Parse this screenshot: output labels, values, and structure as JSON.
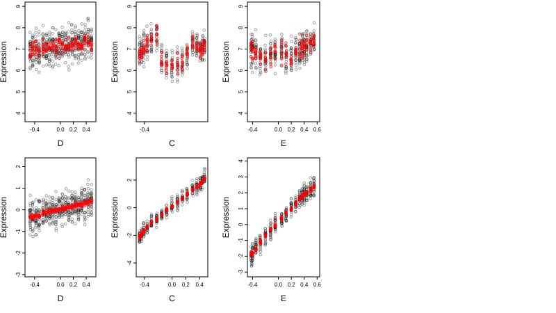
{
  "chart_data": [
    {
      "type": "scatter",
      "xlabel": "D",
      "ylabel": "Expression",
      "xlim": [
        -0.55,
        0.55
      ],
      "ylim": [
        3.6,
        9.2
      ],
      "xticks": [
        -0.4,
        0.0,
        0.2,
        0.4
      ],
      "xtick_labels": [
        "-0.4",
        "0.0",
        "0.2",
        "0.4"
      ],
      "yticks": [
        4,
        5,
        6,
        7,
        8,
        9
      ],
      "ytick_labels": [
        "4",
        "5",
        "6",
        "7",
        "8",
        "9"
      ],
      "x_groups": [
        -0.47,
        -0.43,
        -0.38,
        -0.33,
        -0.27,
        -0.22,
        -0.17,
        -0.12,
        -0.07,
        -0.02,
        0.03,
        0.08,
        0.13,
        0.18,
        0.23,
        0.28,
        0.33,
        0.38,
        0.43,
        0.48
      ],
      "observed_center": [
        6.8,
        6.9,
        7.0,
        6.9,
        7.1,
        7.0,
        7.2,
        7.1,
        7.0,
        7.2,
        7.3,
        7.2,
        7.1,
        7.4,
        7.3,
        7.2,
        7.4,
        7.3,
        7.5,
        7.3
      ],
      "observed_spread": 0.85,
      "observed_points_per_group": 24,
      "fitted_center": [
        6.8,
        6.9,
        7.0,
        6.9,
        7.0,
        7.0,
        7.1,
        7.1,
        7.0,
        7.2,
        7.2,
        7.2,
        7.1,
        7.3,
        7.3,
        7.2,
        7.3,
        7.3,
        7.4,
        7.3
      ],
      "fitted_spread": 0.35,
      "fitted_points_per_group": 8,
      "grid": false
    },
    {
      "type": "scatter",
      "xlabel": "C",
      "ylabel": "Expression",
      "xlim": [
        -0.52,
        0.52
      ],
      "ylim": [
        3.6,
        9.2
      ],
      "xticks": [
        -0.4
      ],
      "xtick_labels": [
        "-0.4"
      ],
      "yticks": [
        4,
        5,
        6,
        7,
        8,
        9
      ],
      "ytick_labels": [
        "4",
        "5",
        "6",
        "7",
        "8",
        "9"
      ],
      "x_groups": [
        -0.47,
        -0.44,
        -0.41,
        -0.36,
        -0.3,
        -0.22,
        -0.15,
        -0.08,
        0.0,
        0.08,
        0.15,
        0.22,
        0.3,
        0.36,
        0.41,
        0.44,
        0.47
      ],
      "observed_center": [
        6.8,
        6.9,
        7.0,
        7.2,
        7.4,
        7.6,
        6.6,
        6.3,
        6.2,
        6.3,
        6.4,
        6.8,
        7.3,
        7.1,
        7.0,
        7.1,
        7.2
      ],
      "observed_spread": 0.7,
      "observed_points_per_group": 20,
      "fitted_center": [
        6.7,
        6.9,
        7.1,
        7.2,
        7.5,
        7.7,
        6.5,
        6.2,
        6.2,
        6.3,
        6.4,
        6.8,
        7.3,
        7.1,
        7.0,
        7.1,
        7.3
      ],
      "fitted_spread": 0.45,
      "fitted_points_per_group": 8,
      "grid": false
    },
    {
      "type": "scatter",
      "xlabel": "E",
      "ylabel": "Expression",
      "xlim": [
        -0.48,
        0.64
      ],
      "ylim": [
        3.6,
        9.2
      ],
      "xticks": [
        -0.4,
        0.0,
        0.2,
        0.4,
        0.6
      ],
      "xtick_labels": [
        "-0.4",
        "0.0",
        "0.2",
        "0.4",
        "0.6"
      ],
      "yticks": [
        4,
        5,
        6,
        7,
        8,
        9
      ],
      "ytick_labels": [
        "4",
        "5",
        "6",
        "7",
        "8",
        "9"
      ],
      "x_groups": [
        -0.42,
        -0.4,
        -0.35,
        -0.28,
        -0.2,
        -0.12,
        -0.05,
        0.05,
        0.12,
        0.2,
        0.27,
        0.33,
        0.37,
        0.4,
        0.44,
        0.5,
        0.55
      ],
      "observed_center": [
        6.9,
        6.9,
        6.8,
        6.7,
        6.6,
        6.7,
        6.8,
        6.9,
        6.8,
        6.7,
        6.9,
        7.0,
        7.1,
        7.0,
        7.1,
        7.2,
        7.3
      ],
      "observed_spread": 0.75,
      "observed_points_per_group": 22,
      "fitted_center": [
        6.9,
        6.9,
        6.8,
        6.6,
        6.5,
        6.6,
        6.8,
        6.9,
        6.8,
        6.6,
        6.9,
        7.0,
        7.1,
        7.0,
        7.1,
        7.2,
        7.4
      ],
      "fitted_spread": 0.5,
      "fitted_points_per_group": 8,
      "grid": false
    },
    {
      "type": "scatter",
      "xlabel": "D",
      "ylabel": "Expression",
      "xlim": [
        -0.55,
        0.55
      ],
      "ylim": [
        -3.1,
        2.4
      ],
      "xticks": [
        -0.4,
        0.0,
        0.2,
        0.4
      ],
      "xtick_labels": [
        "-0.4",
        "0.0",
        "0.2",
        "0.4"
      ],
      "yticks": [
        -3,
        -2,
        -1,
        0,
        1,
        2
      ],
      "ytick_labels": [
        "-3",
        "-2",
        "-1",
        "0",
        "1",
        "2"
      ],
      "x_groups": [
        -0.47,
        -0.43,
        -0.38,
        -0.33,
        -0.27,
        -0.22,
        -0.17,
        -0.12,
        -0.07,
        -0.02,
        0.03,
        0.08,
        0.13,
        0.18,
        0.23,
        0.28,
        0.33,
        0.38,
        0.43,
        0.48
      ],
      "observed_center": [
        -0.4,
        -0.3,
        -0.3,
        -0.2,
        -0.15,
        -0.1,
        -0.05,
        -0.05,
        0.0,
        0.05,
        0.05,
        0.1,
        0.1,
        0.15,
        0.2,
        0.2,
        0.3,
        0.3,
        0.35,
        0.4
      ],
      "observed_spread": 0.75,
      "observed_points_per_group": 24,
      "fitted_center": [
        -0.35,
        -0.3,
        -0.27,
        -0.22,
        -0.17,
        -0.13,
        -0.09,
        -0.05,
        -0.02,
        0.02,
        0.05,
        0.09,
        0.12,
        0.16,
        0.2,
        0.23,
        0.27,
        0.31,
        0.35,
        0.4
      ],
      "fitted_spread": 0.12,
      "fitted_points_per_group": 8,
      "grid": false
    },
    {
      "type": "scatter",
      "xlabel": "C",
      "ylabel": "Expression",
      "xlim": [
        -0.52,
        0.52
      ],
      "ylim": [
        -5.0,
        3.6
      ],
      "xticks": [
        -0.4,
        0.0,
        0.2,
        0.4
      ],
      "xtick_labels": [
        "-0.4",
        "0.0",
        "0.2",
        "0.4"
      ],
      "yticks": [
        -4,
        -2,
        0,
        2
      ],
      "ytick_labels": [
        "-4",
        "-2",
        "0",
        "2"
      ],
      "x_groups": [
        -0.47,
        -0.44,
        -0.41,
        -0.36,
        -0.3,
        -0.22,
        -0.15,
        -0.08,
        0.0,
        0.08,
        0.15,
        0.22,
        0.3,
        0.36,
        0.41,
        0.44,
        0.47
      ],
      "observed_center": [
        -2.1,
        -1.9,
        -1.7,
        -1.4,
        -1.1,
        -0.8,
        -0.5,
        -0.2,
        0.1,
        0.4,
        0.7,
        1.0,
        1.3,
        1.5,
        1.7,
        1.9,
        2.1
      ],
      "observed_spread": 0.55,
      "observed_points_per_group": 20,
      "fitted_center": [
        -2.1,
        -1.9,
        -1.7,
        -1.4,
        -1.1,
        -0.8,
        -0.5,
        -0.2,
        0.1,
        0.4,
        0.7,
        1.0,
        1.3,
        1.5,
        1.7,
        1.9,
        2.1
      ],
      "fitted_spread": 0.12,
      "fitted_points_per_group": 8,
      "grid": false
    },
    {
      "type": "scatter",
      "xlabel": "E",
      "ylabel": "Expression",
      "xlim": [
        -0.48,
        0.64
      ],
      "ylim": [
        -3.3,
        4.2
      ],
      "xticks": [
        -0.4,
        0.0,
        0.2,
        0.4,
        0.6
      ],
      "xtick_labels": [
        "-0.4",
        "0.0",
        "0.2",
        "0.4",
        "0.6"
      ],
      "yticks": [
        -3,
        -2,
        -1,
        0,
        1,
        2,
        3,
        4
      ],
      "ytick_labels": [
        "-3",
        "-2",
        "-1",
        "0",
        "1",
        "2",
        "3",
        "4"
      ],
      "x_groups": [
        -0.42,
        -0.4,
        -0.35,
        -0.28,
        -0.2,
        -0.12,
        -0.05,
        0.05,
        0.12,
        0.2,
        0.27,
        0.33,
        0.37,
        0.4,
        0.44,
        0.5,
        0.55
      ],
      "observed_center": [
        -1.9,
        -1.8,
        -1.5,
        -1.1,
        -0.7,
        -0.3,
        0.0,
        0.4,
        0.7,
        1.0,
        1.3,
        1.6,
        1.8,
        1.9,
        2.0,
        2.2,
        2.4
      ],
      "observed_spread": 0.6,
      "observed_points_per_group": 22,
      "fitted_center": [
        -1.9,
        -1.8,
        -1.5,
        -1.1,
        -0.7,
        -0.3,
        0.0,
        0.4,
        0.7,
        1.0,
        1.3,
        1.6,
        1.8,
        1.9,
        2.0,
        2.2,
        2.4
      ],
      "fitted_spread": 0.15,
      "fitted_points_per_group": 8,
      "grid": false
    }
  ],
  "colors": {
    "observed": "#000000",
    "fitted": "#ff0000",
    "background": "#ffffff"
  }
}
